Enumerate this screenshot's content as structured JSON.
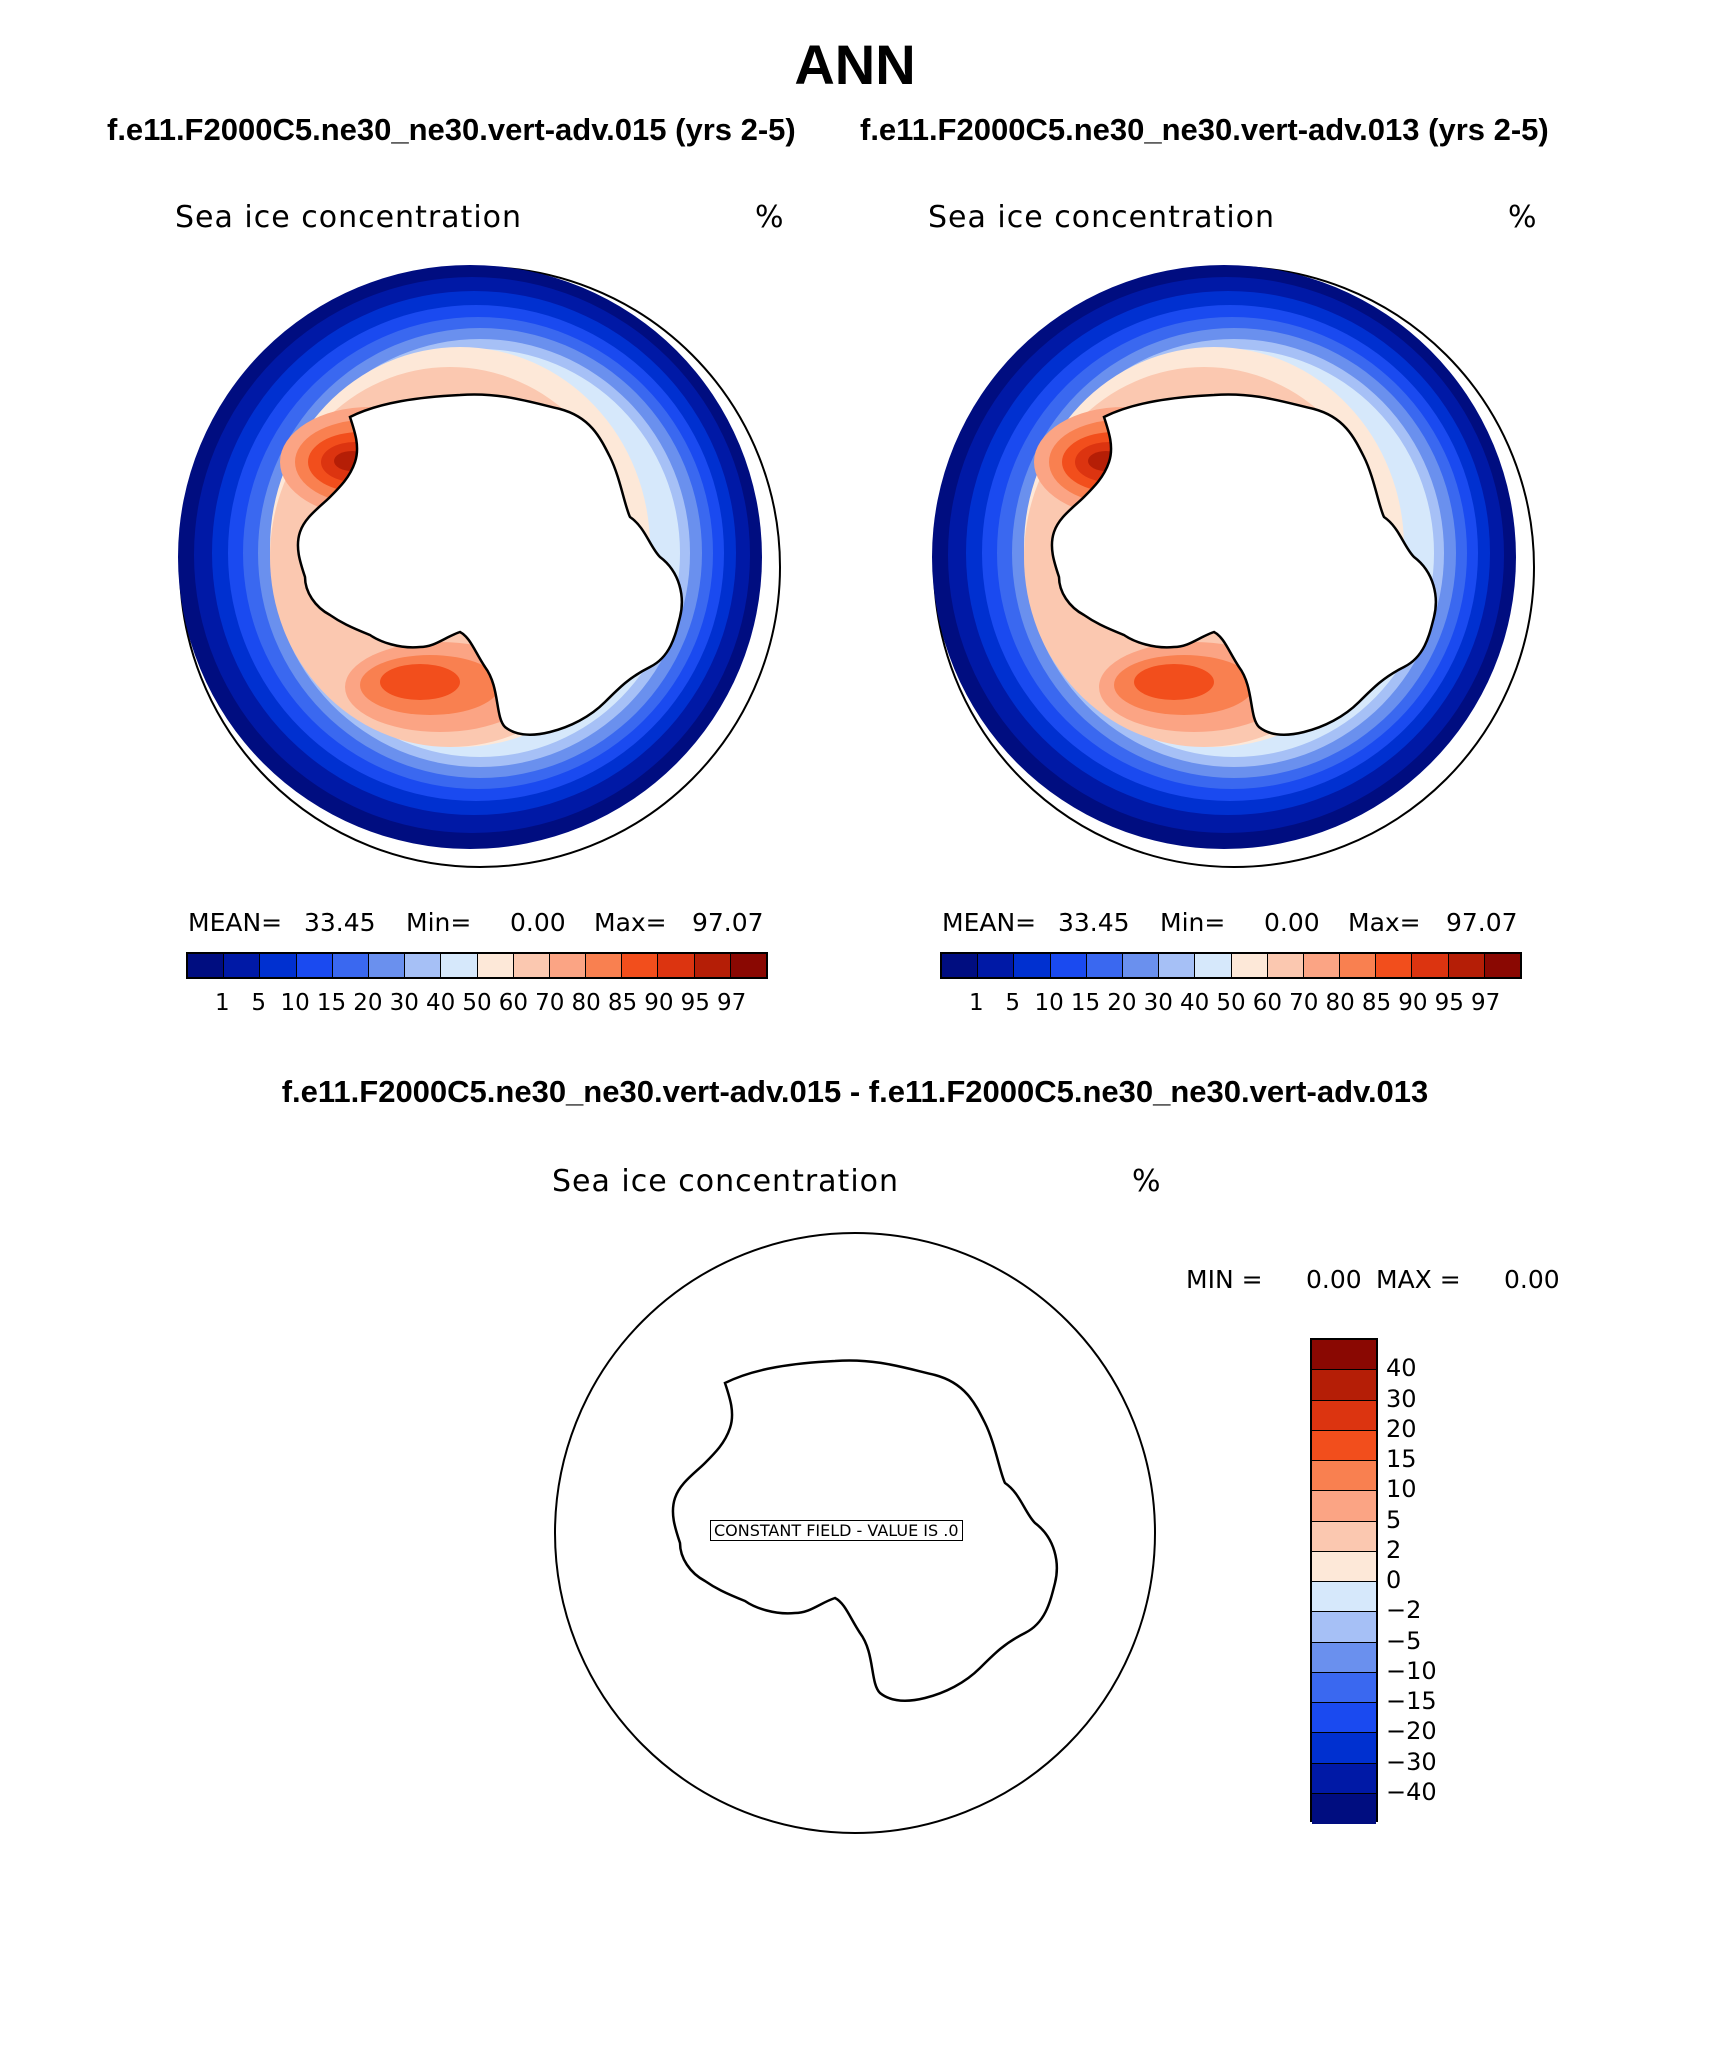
{
  "header": {
    "title": "ANN",
    "left_case": "f.e11.F2000C5.ne30_ne30.vert-adv.015 (yrs 2-5)",
    "right_case": "f.e11.F2000C5.ne30_ne30.vert-adv.013 (yrs 2-5)",
    "diff_title": "f.e11.F2000C5.ne30_ne30.vert-adv.015 - f.e11.F2000C5.ne30_ne30.vert-adv.013"
  },
  "panels": {
    "left": {
      "variable": "Sea ice concentration",
      "units": "%",
      "mean_label": "MEAN=",
      "mean_value": "33.45",
      "min_label": "Min=",
      "min_value": "0.00",
      "max_label": "Max=",
      "max_value": "97.07"
    },
    "right": {
      "variable": "Sea ice concentration",
      "units": "%",
      "mean_label": "MEAN=",
      "mean_value": "33.45",
      "min_label": "Min=",
      "min_value": "0.00",
      "max_label": "Max=",
      "max_value": "97.07"
    },
    "diff": {
      "variable": "Sea ice concentration",
      "units": "%",
      "min_label": "MIN =",
      "min_value": "0.00",
      "max_label": "MAX =",
      "max_value": "0.00",
      "constant_note": "CONSTANT FIELD - VALUE IS .0"
    }
  },
  "colorbar_abs": {
    "levels": [
      "1",
      "5",
      "10",
      "15",
      "20",
      "30",
      "40",
      "50",
      "60",
      "70",
      "80",
      "85",
      "90",
      "95",
      "97"
    ],
    "colors": [
      "#000d80",
      "#0019a6",
      "#0030d0",
      "#1a4af0",
      "#3a68f0",
      "#6a90ee",
      "#a6c0f6",
      "#d6e8fb",
      "#fde8d8",
      "#fbc8b0",
      "#fba484",
      "#f98050",
      "#f24e1c",
      "#dc3410",
      "#b51e06",
      "#8a0802"
    ]
  },
  "colorbar_diff": {
    "levels": [
      "40",
      "30",
      "20",
      "15",
      "10",
      "5",
      "2",
      "0",
      "−2",
      "−5",
      "−10",
      "−15",
      "−20",
      "−30",
      "−40"
    ],
    "colors": [
      "#8a0802",
      "#b51e06",
      "#dc3410",
      "#f24e1c",
      "#f98050",
      "#fba484",
      "#fbc8b0",
      "#fde8d8",
      "#d6e8fb",
      "#a6c0f6",
      "#6a90ee",
      "#3a68f0",
      "#1a4af0",
      "#0030d0",
      "#0019a6",
      "#000d80"
    ]
  }
}
